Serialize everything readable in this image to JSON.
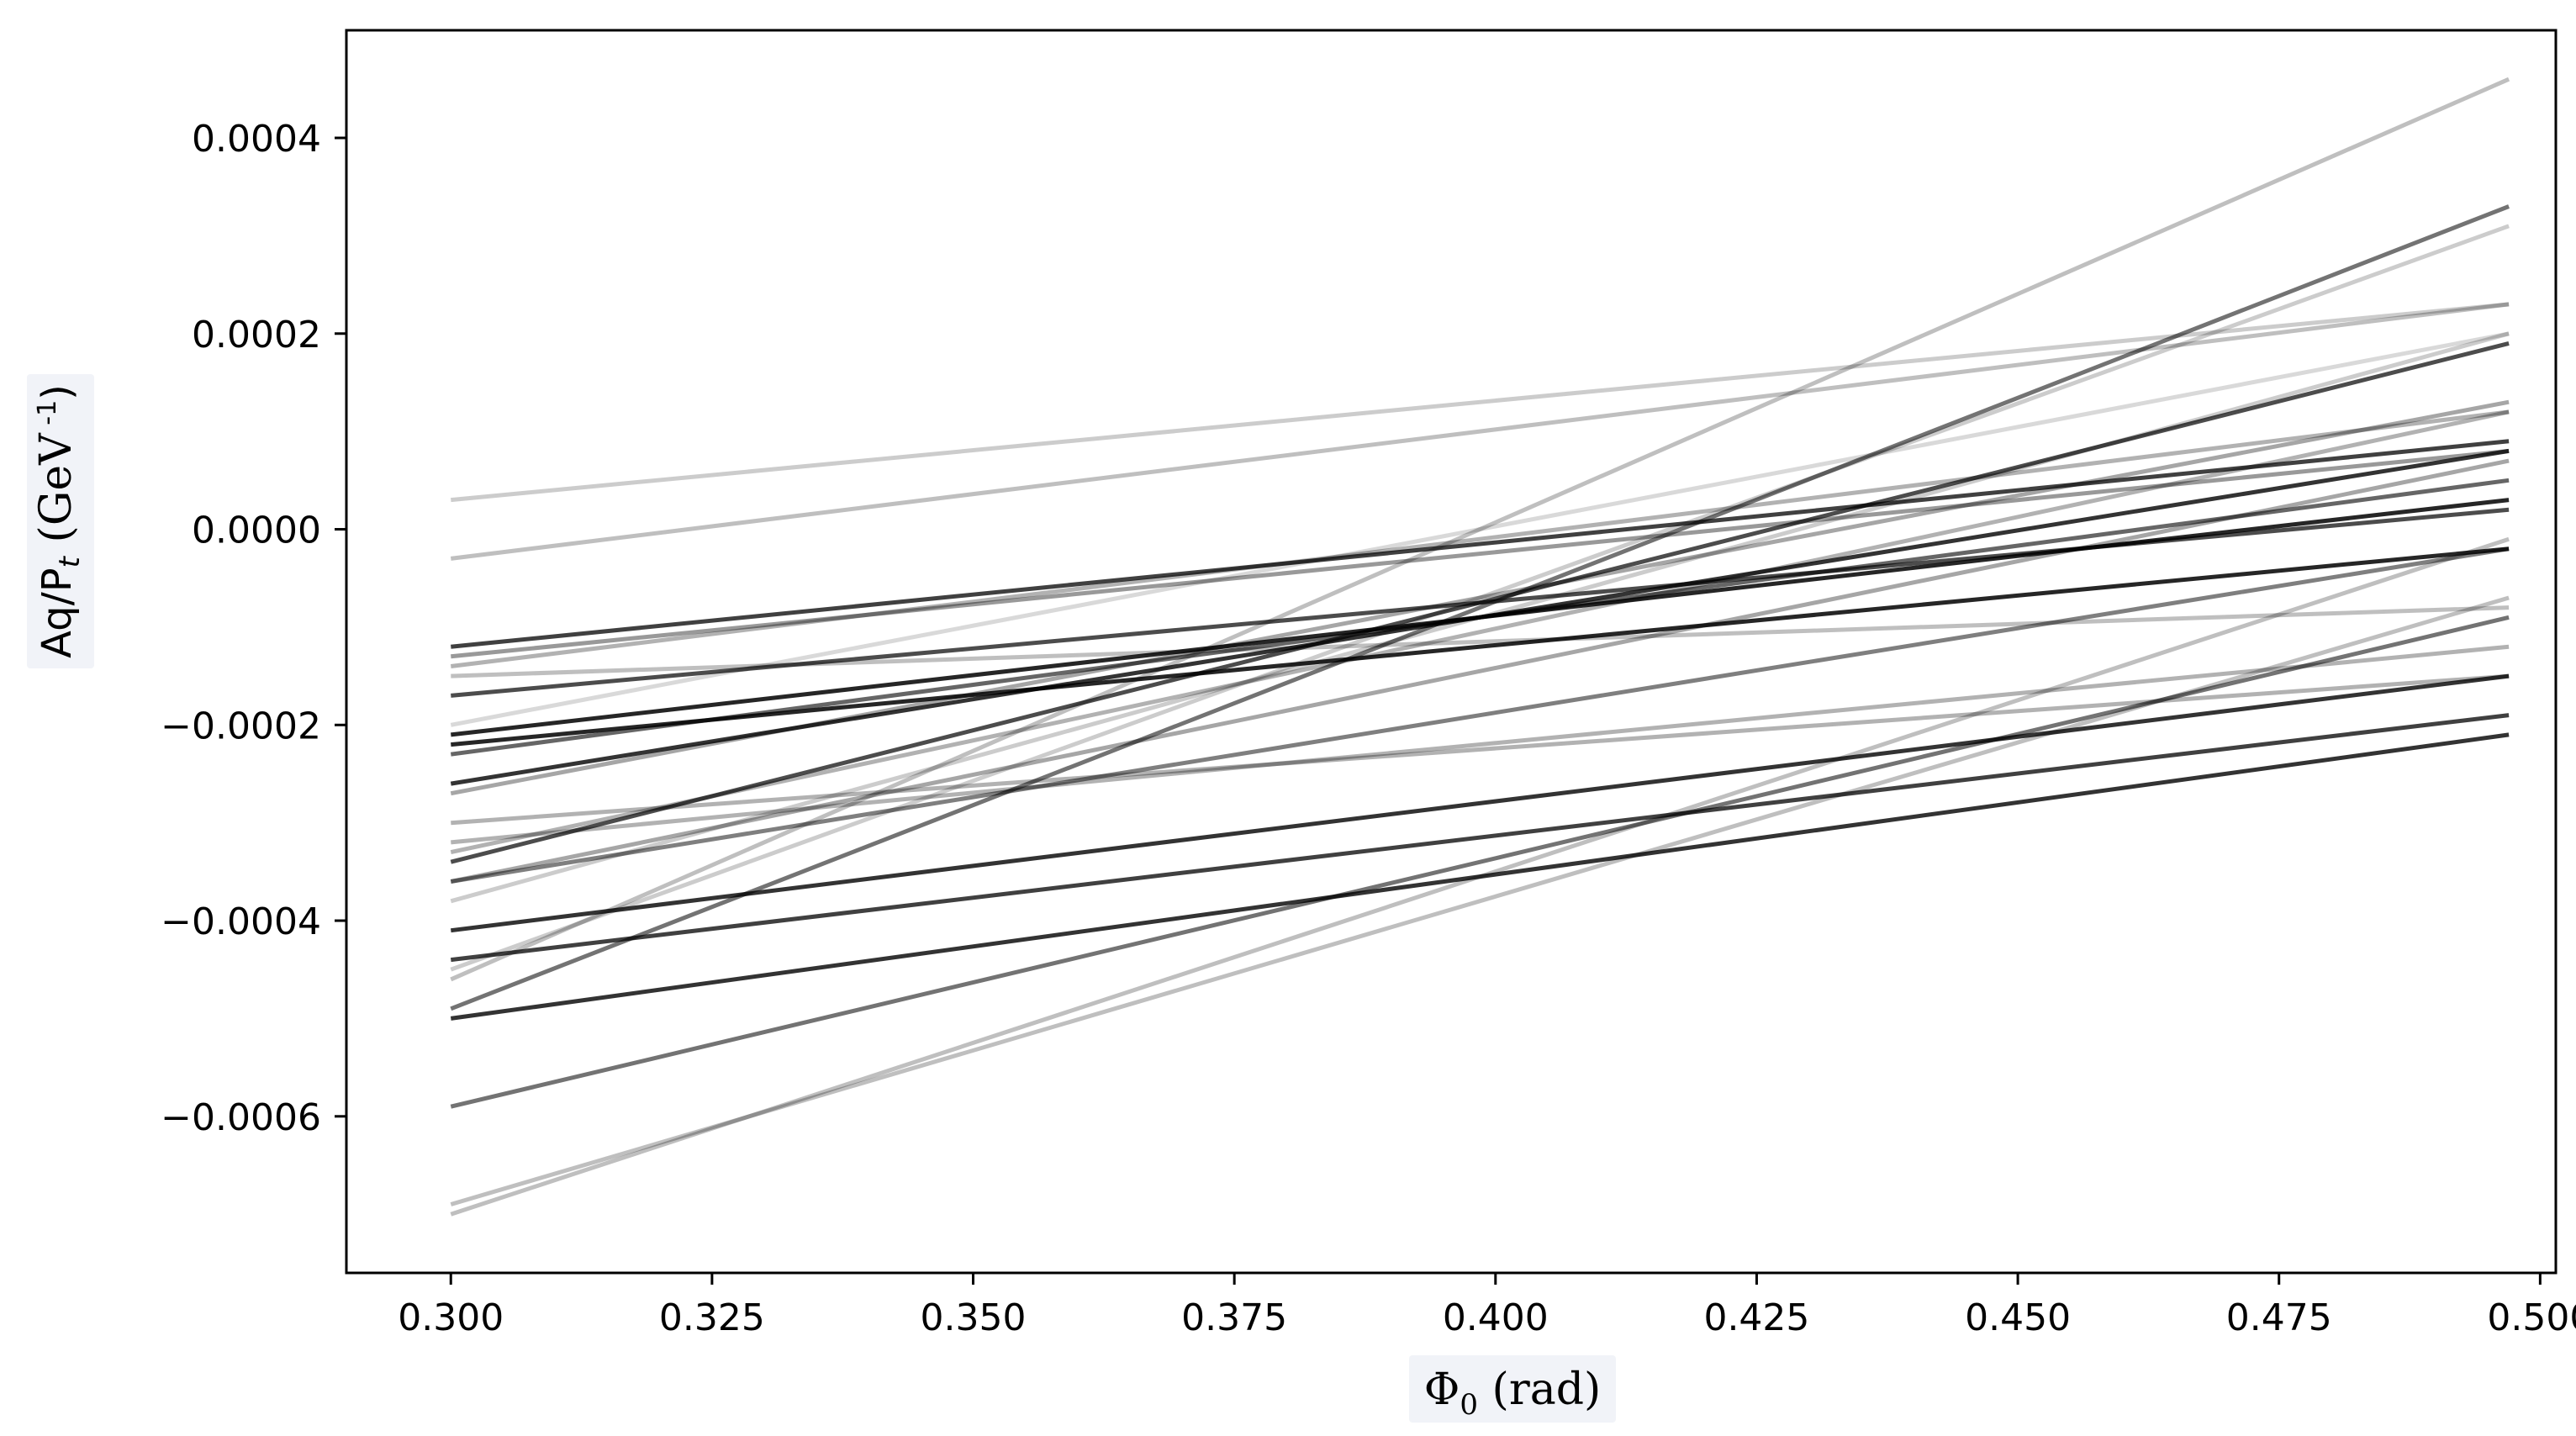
{
  "chart_data": {
    "type": "line",
    "title": "",
    "xlabel": {
      "prefix": "Φ",
      "sub": "0",
      "suffix": " (rad)"
    },
    "ylabel": {
      "prefix": "Aq/P",
      "sub": "t",
      "suffix": " (GeV",
      "sup": " -1",
      "close": ")"
    },
    "xlim": [
      0.29,
      0.5015
    ],
    "ylim": [
      -0.00076,
      0.00051
    ],
    "xticks": [
      {
        "v": 0.3,
        "label": "0.300"
      },
      {
        "v": 0.325,
        "label": "0.325"
      },
      {
        "v": 0.35,
        "label": "0.350"
      },
      {
        "v": 0.375,
        "label": "0.375"
      },
      {
        "v": 0.4,
        "label": "0.400"
      },
      {
        "v": 0.425,
        "label": "0.425"
      },
      {
        "v": 0.45,
        "label": "0.450"
      },
      {
        "v": 0.475,
        "label": "0.475"
      },
      {
        "v": 0.5,
        "label": "0.500"
      }
    ],
    "yticks": [
      {
        "v": 0.0004,
        "label": "0.0004"
      },
      {
        "v": 0.0002,
        "label": "0.0002"
      },
      {
        "v": 0.0,
        "label": "0.0000"
      },
      {
        "v": -0.0002,
        "label": "−0.0002"
      },
      {
        "v": -0.0004,
        "label": "−0.0004"
      },
      {
        "v": -0.0006,
        "label": "−0.0006"
      }
    ],
    "grid": false,
    "legend": "none",
    "line_color": "#000000",
    "series": [
      {
        "x": [
          0.3,
          0.497
        ],
        "y": [
          3e-05,
          0.00023
        ],
        "opacity": 0.2
      },
      {
        "x": [
          0.3,
          0.497
        ],
        "y": [
          -3e-05,
          0.00023
        ],
        "opacity": 0.25
      },
      {
        "x": [
          0.3,
          0.497
        ],
        "y": [
          -0.00012,
          9e-05
        ],
        "opacity": 0.75
      },
      {
        "x": [
          0.3,
          0.497
        ],
        "y": [
          -0.00013,
          8e-05
        ],
        "opacity": 0.4
      },
      {
        "x": [
          0.3,
          0.497
        ],
        "y": [
          -0.00014,
          0.00012
        ],
        "opacity": 0.3
      },
      {
        "x": [
          0.3,
          0.497
        ],
        "y": [
          -0.00015,
          -8e-05
        ],
        "opacity": 0.25
      },
      {
        "x": [
          0.3,
          0.497
        ],
        "y": [
          -0.00017,
          2e-05
        ],
        "opacity": 0.7
      },
      {
        "x": [
          0.3,
          0.497
        ],
        "y": [
          -0.00021,
          3e-05
        ],
        "opacity": 0.85
      },
      {
        "x": [
          0.3,
          0.497
        ],
        "y": [
          -0.00022,
          -2e-05
        ],
        "opacity": 0.85
      },
      {
        "x": [
          0.3,
          0.497
        ],
        "y": [
          -0.00023,
          5e-05
        ],
        "opacity": 0.6
      },
      {
        "x": [
          0.3,
          0.497
        ],
        "y": [
          -0.00026,
          8e-05
        ],
        "opacity": 0.8
      },
      {
        "x": [
          0.3,
          0.497
        ],
        "y": [
          -0.0002,
          0.0002
        ],
        "opacity": 0.15
      },
      {
        "x": [
          0.3,
          0.497
        ],
        "y": [
          -0.00027,
          0.00013
        ],
        "opacity": 0.35
      },
      {
        "x": [
          0.3,
          0.497
        ],
        "y": [
          -0.0003,
          -0.00015
        ],
        "opacity": 0.3
      },
      {
        "x": [
          0.3,
          0.497
        ],
        "y": [
          -0.00032,
          -0.00012
        ],
        "opacity": 0.3
      },
      {
        "x": [
          0.3,
          0.497
        ],
        "y": [
          -0.00034,
          0.00019
        ],
        "opacity": 0.7
      },
      {
        "x": [
          0.3,
          0.497
        ],
        "y": [
          -0.00036,
          7e-05
        ],
        "opacity": 0.35
      },
      {
        "x": [
          0.3,
          0.497
        ],
        "y": [
          -0.00038,
          0.0002
        ],
        "opacity": 0.2
      },
      {
        "x": [
          0.3,
          0.497
        ],
        "y": [
          -0.00041,
          -0.00015
        ],
        "opacity": 0.8
      },
      {
        "x": [
          0.3,
          0.497
        ],
        "y": [
          -0.00044,
          -0.00019
        ],
        "opacity": 0.75
      },
      {
        "x": [
          0.3,
          0.497
        ],
        "y": [
          -0.00049,
          0.00033
        ],
        "opacity": 0.55
      },
      {
        "x": [
          0.3,
          0.497
        ],
        "y": [
          -0.0005,
          -0.00021
        ],
        "opacity": 0.8
      },
      {
        "x": [
          0.3,
          0.497
        ],
        "y": [
          -0.00045,
          0.00031
        ],
        "opacity": 0.2
      },
      {
        "x": [
          0.3,
          0.497
        ],
        "y": [
          -0.00046,
          0.00046
        ],
        "opacity": 0.25
      },
      {
        "x": [
          0.3,
          0.497
        ],
        "y": [
          -0.00059,
          -9e-05
        ],
        "opacity": 0.55
      },
      {
        "x": [
          0.3,
          0.497
        ],
        "y": [
          -0.00069,
          -7e-05
        ],
        "opacity": 0.25
      },
      {
        "x": [
          0.3,
          0.497
        ],
        "y": [
          -0.0007,
          -1e-05
        ],
        "opacity": 0.25
      },
      {
        "x": [
          0.3,
          0.497
        ],
        "y": [
          -0.00036,
          -2e-05
        ],
        "opacity": 0.5
      },
      {
        "x": [
          0.3,
          0.497
        ],
        "y": [
          -0.00033,
          0.00012
        ],
        "opacity": 0.3
      }
    ]
  }
}
